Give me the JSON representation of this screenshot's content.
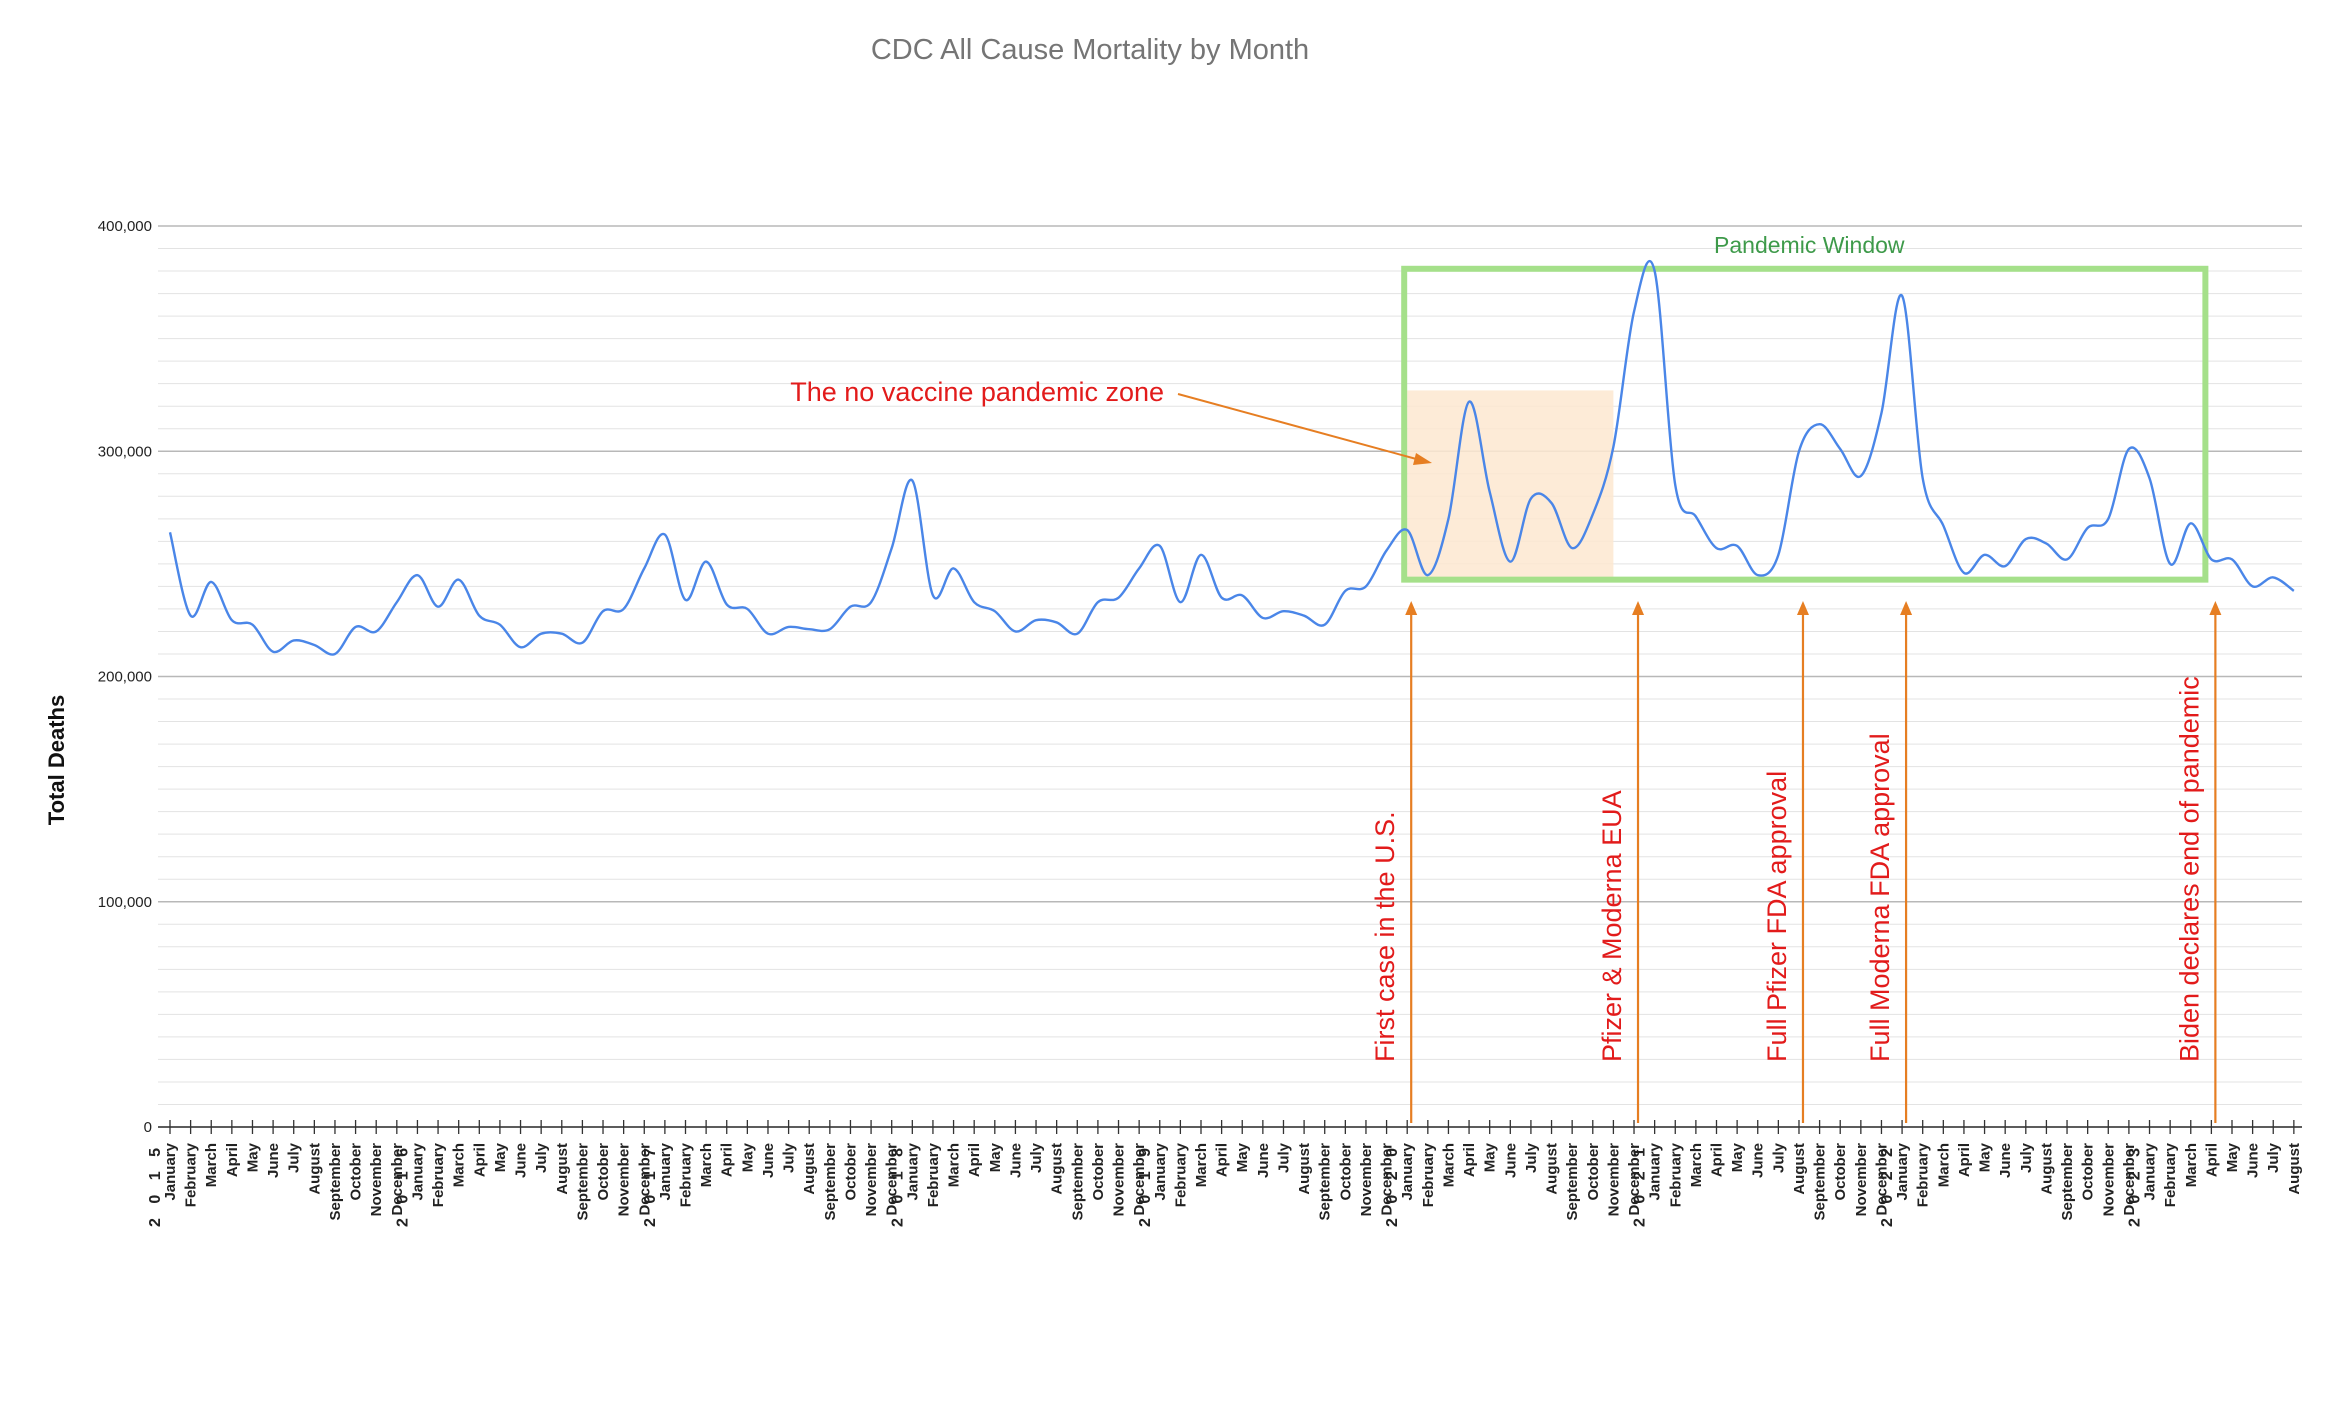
{
  "chart_data": {
    "type": "line",
    "title": "CDC All Cause Mortality by Month",
    "ylabel": "Total Deaths",
    "xlabel": "",
    "ylim": [
      0,
      400000
    ],
    "yticks": [
      {
        "value": 0,
        "label": "0"
      },
      {
        "value": 100000,
        "label": "100,000"
      },
      {
        "value": 200000,
        "label": "200,000"
      },
      {
        "value": 300000,
        "label": "300,000"
      },
      {
        "value": 400000,
        "label": "400,000"
      }
    ],
    "grid": true,
    "colors": {
      "line": "#4a86e8",
      "annotation": "#e21b1b",
      "arrow": "#e67e22",
      "pandemic_box": "#a5e08a",
      "pandemic_text": "#3e9a4a",
      "no_vaccine_fill": "#fde8d0"
    },
    "months": [
      "January",
      "February",
      "March",
      "April",
      "May",
      "June",
      "July",
      "August",
      "September",
      "October",
      "November",
      "December"
    ],
    "years": [
      "2 0 1 5",
      "2 0 1 6",
      "2 0 1 7",
      "2 0 1 8",
      "2 0 1 9",
      "2 0 2 0",
      "2 0 2 1",
      "2 0 2 2",
      "2 0 2 3"
    ],
    "start": "2015-01",
    "end": "2023-08",
    "series": [
      {
        "values": [
          264000,
          227000,
          242000,
          225000,
          223000,
          211000,
          216000,
          214000,
          210000,
          222000,
          220000,
          233000,
          245000,
          231000,
          243000,
          227000,
          223000,
          213000,
          219000,
          219000,
          215000,
          229000,
          230000,
          248000,
          263000,
          234000,
          251000,
          232000,
          230000,
          219000,
          222000,
          221000,
          221000,
          231000,
          233000,
          257000,
          287000,
          236000,
          248000,
          233000,
          229000,
          220000,
          225000,
          224000,
          219000,
          233000,
          235000,
          248000,
          258000,
          233000,
          254000,
          235000,
          236000,
          226000,
          229000,
          227000,
          223000,
          238000,
          240000,
          256000,
          265000,
          245000,
          270000,
          322000,
          282000,
          251000,
          279000,
          277000,
          257000,
          272000,
          302000,
          362000,
          380000,
          285000,
          271000,
          257000,
          258000,
          245000,
          254000,
          300000,
          312000,
          301000,
          289000,
          317000,
          369000,
          288000,
          267000,
          246000,
          254000,
          249000,
          261000,
          259000,
          252000,
          266000,
          270000,
          301000,
          288000,
          250000,
          268000,
          252000,
          252000,
          240000,
          244000,
          238000
        ]
      }
    ],
    "annotations": [
      {
        "label": "First case in the U.S.",
        "date": "2020-01"
      },
      {
        "label": "Pfizer & Moderna EUA",
        "date": "2020-12"
      },
      {
        "label": "Full Pfizer FDA approval",
        "date": "2021-08"
      },
      {
        "label": "Full Moderna FDA approval",
        "date": "2022-01"
      },
      {
        "label": "Biden declares end of pandemic",
        "date": "2023-04"
      }
    ],
    "regions": [
      {
        "label": "Pandemic Window",
        "from": "2020-01",
        "to": "2023-04",
        "y_from": 243000,
        "y_to": 381000
      },
      {
        "label": "The no vaccine pandemic zone",
        "from": "2020-01",
        "to": "2020-11",
        "y_from": 243000,
        "y_to": 327000
      }
    ]
  }
}
